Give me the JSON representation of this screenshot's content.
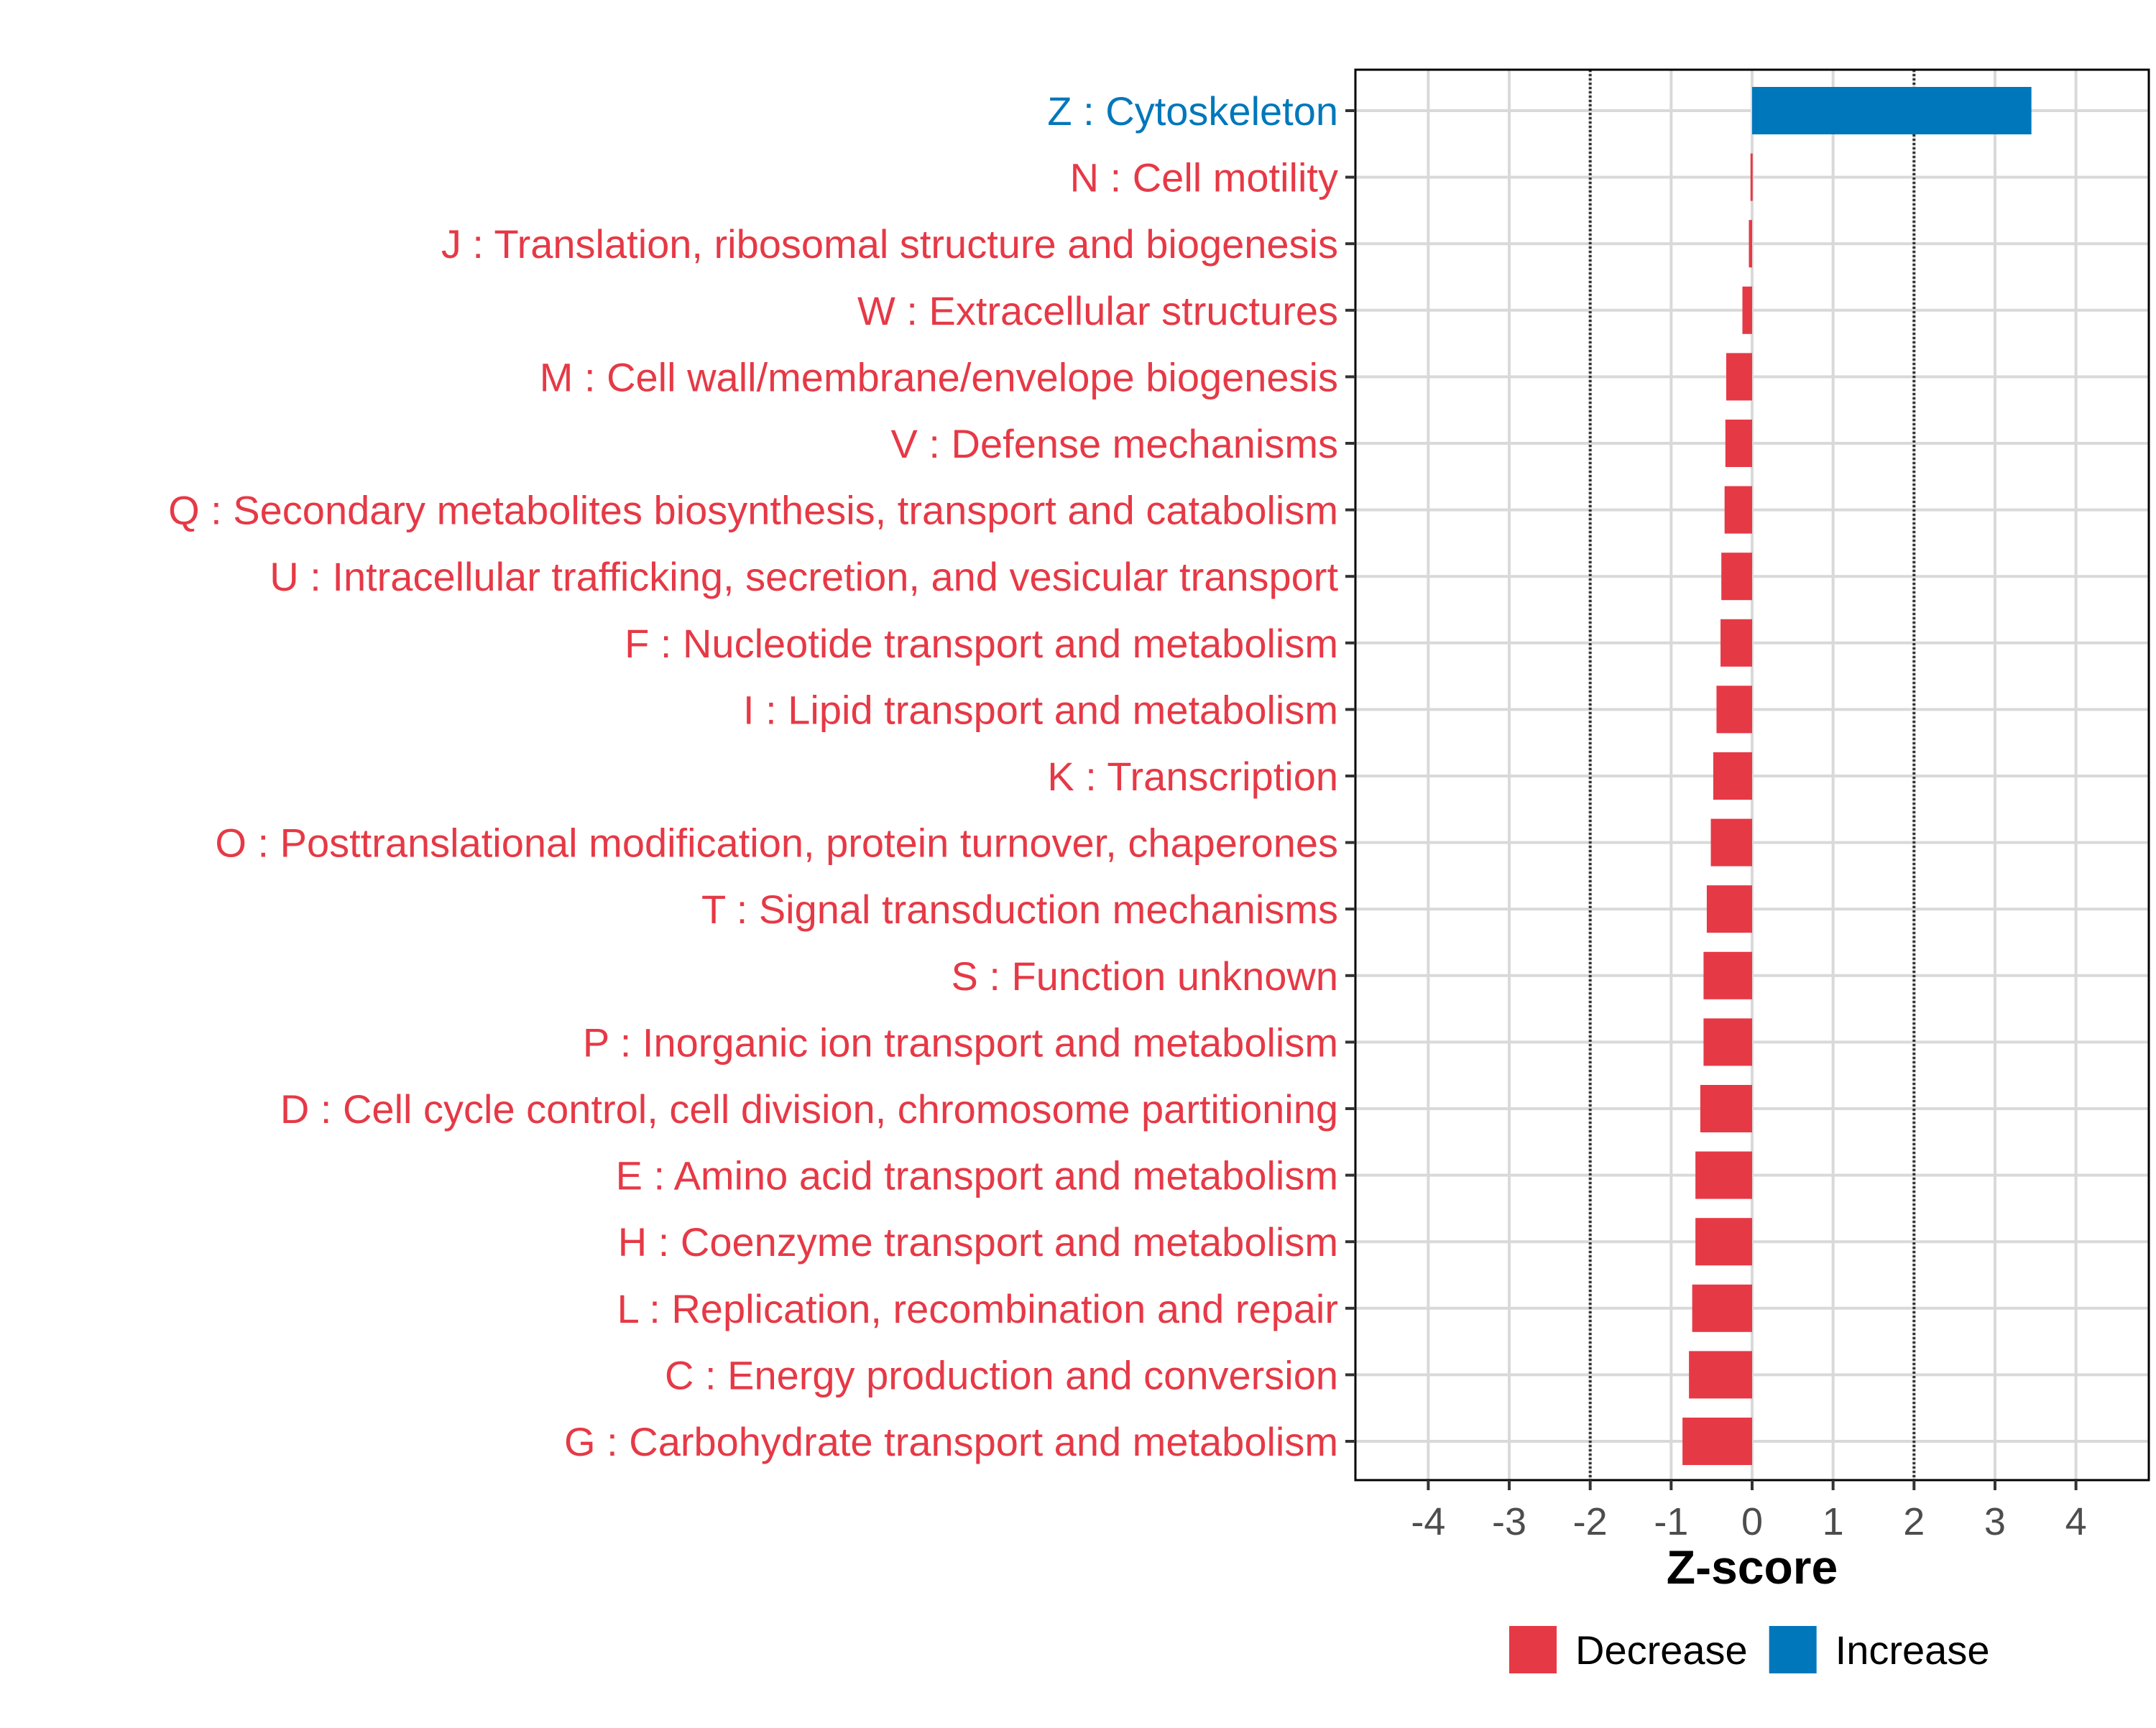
{
  "chart_data": {
    "type": "bar",
    "orientation": "horizontal",
    "xlabel": "Z-score",
    "xlim": [
      -4.9,
      4.9
    ],
    "xticks": [
      -4,
      -3,
      -2,
      -1,
      0,
      1,
      2,
      3,
      4
    ],
    "xtick_labels": [
      "-4",
      "-3",
      "-2",
      "-1",
      "0",
      "1",
      "2",
      "3",
      "4"
    ],
    "reference_lines": [
      -2,
      2
    ],
    "grid": true,
    "legend_position": "bottom",
    "colors": {
      "Decrease": "#E63946",
      "Increase": "#0077BB"
    },
    "legend": [
      {
        "label": "Decrease",
        "color": "#E63946"
      },
      {
        "label": "Increase",
        "color": "#0077BB"
      }
    ],
    "categories": [
      "Z : Cytoskeleton",
      "N : Cell motility",
      "J : Translation, ribosomal structure and biogenesis",
      "W : Extracellular structures",
      "M : Cell wall/membrane/envelope biogenesis",
      "V : Defense mechanisms",
      "Q : Secondary metabolites biosynthesis, transport and catabolism",
      "U : Intracellular trafficking, secretion, and vesicular transport",
      "F : Nucleotide transport and metabolism",
      "I : Lipid transport and metabolism",
      "K : Transcription",
      "O : Posttranslational modification, protein turnover, chaperones",
      "T : Signal transduction mechanisms",
      "S : Function unknown",
      "P : Inorganic ion transport and metabolism",
      "D : Cell cycle control, cell division, chromosome partitioning",
      "E : Amino acid transport and metabolism",
      "H : Coenzyme transport and metabolism",
      "L : Replication, recombination and repair",
      "C : Energy production and conversion",
      "G : Carbohydrate transport and metabolism"
    ],
    "values": [
      3.45,
      -0.02,
      -0.04,
      -0.12,
      -0.32,
      -0.33,
      -0.34,
      -0.38,
      -0.39,
      -0.44,
      -0.48,
      -0.51,
      -0.56,
      -0.6,
      -0.6,
      -0.64,
      -0.7,
      -0.7,
      -0.74,
      -0.78,
      -0.86
    ],
    "groups": [
      "Increase",
      "Decrease",
      "Decrease",
      "Decrease",
      "Decrease",
      "Decrease",
      "Decrease",
      "Decrease",
      "Decrease",
      "Decrease",
      "Decrease",
      "Decrease",
      "Decrease",
      "Decrease",
      "Decrease",
      "Decrease",
      "Decrease",
      "Decrease",
      "Decrease",
      "Decrease",
      "Decrease"
    ]
  }
}
